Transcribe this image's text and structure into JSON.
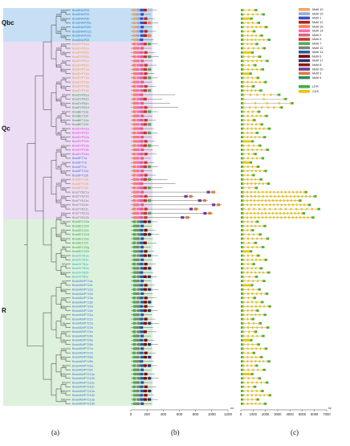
{
  "groups": [
    {
      "id": "qbc",
      "label": "Qbc",
      "color": "#bcd9f2"
    },
    {
      "id": "qc",
      "label": "Qc",
      "color": "#e9d7f2"
    },
    {
      "id": "r",
      "label": "R",
      "color": "#d7efd7"
    }
  ],
  "panel_labels": {
    "a": "(a)",
    "b": "(b)",
    "c": "(c)"
  },
  "axis_b": {
    "ticks": [
      "0",
      "200",
      "400",
      "600",
      "800",
      "1000",
      "1200"
    ],
    "unit": "aa"
  },
  "axis_c": {
    "ticks": [
      "0",
      "1000",
      "2000",
      "3000",
      "4000",
      "5000",
      "6000",
      "7000"
    ],
    "unit": "bp"
  },
  "motif_legend": [
    {
      "label": "Motif 10",
      "color": "#f4a460"
    },
    {
      "label": "Motif 15",
      "color": "#9aa8d8"
    },
    {
      "label": "Motif 1",
      "color": "#3b4cc0"
    },
    {
      "label": "Motif 12",
      "color": "#b22222"
    },
    {
      "label": "Motif 16",
      "color": "#ff7f50"
    },
    {
      "label": "Motif 14",
      "color": "#ff69b4"
    },
    {
      "label": "Motif 2",
      "color": "#e0607e"
    },
    {
      "label": "Motif 5",
      "color": "#cc3333"
    },
    {
      "label": "Motif 7",
      "color": "#4daf4a"
    },
    {
      "label": "Motif 11",
      "color": "#808080"
    },
    {
      "label": "Motif 13",
      "color": "#1f5fa0"
    },
    {
      "label": "Motif 6",
      "color": "#800000"
    },
    {
      "label": "Motif 17",
      "color": "#2f2f6f"
    },
    {
      "label": "Motif 8",
      "color": "#8b1a1a"
    },
    {
      "label": "Motif 20",
      "color": "#6a3d9a"
    },
    {
      "label": "Motif 3",
      "color": "#e07b39"
    },
    {
      "label": "Motif 4",
      "color": "#2e8b57"
    }
  ],
  "structure_legend": [
    {
      "label": "UTR",
      "color": "#3cb043"
    },
    {
      "label": "CDS",
      "color": "#f2c200"
    }
  ],
  "genes": [
    {
      "name": "BnaSNAP33",
      "g": "qbc",
      "c": "#1a7fc0"
    },
    {
      "name": "BnaSNAP29",
      "g": "qbc",
      "c": "#1a7fc0"
    },
    {
      "name": "BnaSNAP30",
      "g": "qbc",
      "c": "#1a7fc0"
    },
    {
      "name": "BnaSNAP25a",
      "g": "qbc",
      "c": "#1a7fc0"
    },
    {
      "name": "BnaSNAP25b",
      "g": "qbc",
      "c": "#1a7fc0"
    },
    {
      "name": "BnaSNAP31a",
      "g": "qbc",
      "c": "#1a7fc0"
    },
    {
      "name": "BnaSNAP31b",
      "g": "qbc",
      "c": "#1a7fc0"
    },
    {
      "name": "BnaSNAP32",
      "g": "qbc",
      "c": "#1a7fc0"
    },
    {
      "name": "BnaSYP51a",
      "g": "qc",
      "c": "#e0a040"
    },
    {
      "name": "BnaSYP51b",
      "g": "qc",
      "c": "#e0a040"
    },
    {
      "name": "BnaSYP52a",
      "g": "qc",
      "c": "#e0a040"
    },
    {
      "name": "BnaSYP52b",
      "g": "qc",
      "c": "#e0a040"
    },
    {
      "name": "BnaSYP61a",
      "g": "qc",
      "c": "#e0a040"
    },
    {
      "name": "BnaSYP61b",
      "g": "qc",
      "c": "#e0a040"
    },
    {
      "name": "BnaSYP71a",
      "g": "qc",
      "c": "#e0a040"
    },
    {
      "name": "BnaSYP71b",
      "g": "qc",
      "c": "#e0a040"
    },
    {
      "name": "BnaSYP72a",
      "g": "qc",
      "c": "#e0a040"
    },
    {
      "name": "BnaSYP72b",
      "g": "qc",
      "c": "#e0a040"
    },
    {
      "name": "BnaSYP73a",
      "g": "qc",
      "c": "#e0a040"
    },
    {
      "name": "BnaSYP73b",
      "g": "qc",
      "c": "#e0a040"
    },
    {
      "name": "BnaSYP81a",
      "g": "qc",
      "c": "#2e9e3e"
    },
    {
      "name": "BnaSYP81b",
      "g": "qc",
      "c": "#2e9e3e"
    },
    {
      "name": "BnaSYP81c",
      "g": "qc",
      "c": "#2e9e3e"
    },
    {
      "name": "BnaSYP81d",
      "g": "qc",
      "c": "#2e9e3e"
    },
    {
      "name": "BnaBET11a",
      "g": "qc",
      "c": "#2e9e3e"
    },
    {
      "name": "BnaBET11b",
      "g": "qc",
      "c": "#2e9e3e"
    },
    {
      "name": "BnaBET12a",
      "g": "qc",
      "c": "#2e9e3e"
    },
    {
      "name": "BnaBET12b",
      "g": "qc",
      "c": "#2e9e3e"
    },
    {
      "name": "BnaSYP21a",
      "g": "qc",
      "c": "#d63ad6"
    },
    {
      "name": "BnaSYP21b",
      "g": "qc",
      "c": "#d63ad6"
    },
    {
      "name": "BnaSYP22a",
      "g": "qc",
      "c": "#d63ad6"
    },
    {
      "name": "BnaSYP22b",
      "g": "qc",
      "c": "#d63ad6"
    },
    {
      "name": "BnaSYP23a",
      "g": "qc",
      "c": "#d63ad6"
    },
    {
      "name": "BnaSYP23b",
      "g": "qc",
      "c": "#d63ad6"
    },
    {
      "name": "BnaSYP24a",
      "g": "qc",
      "c": "#d63ad6"
    },
    {
      "name": "BnaSFT1a",
      "g": "qc",
      "c": "#3a6fd6"
    },
    {
      "name": "BnaSFT1b",
      "g": "qc",
      "c": "#3a6fd6"
    },
    {
      "name": "BnaSFT1c",
      "g": "qc",
      "c": "#3a6fd6"
    },
    {
      "name": "BnaSFT12a",
      "g": "qc",
      "c": "#3a6fd6"
    },
    {
      "name": "BnaSFT12b",
      "g": "qc",
      "c": "#3a6fd6"
    },
    {
      "name": "BnaSFT13a",
      "g": "qc",
      "c": "#e0a040"
    },
    {
      "name": "BnaSFT13b",
      "g": "qc",
      "c": "#e0a040"
    },
    {
      "name": "BnaSFT13c",
      "g": "qc",
      "c": "#e0a040"
    },
    {
      "name": "BnaTYN21a",
      "g": "qc",
      "c": "#7a7a7a"
    },
    {
      "name": "BnaTYN21b",
      "g": "qc",
      "c": "#7a7a7a"
    },
    {
      "name": "BnaTYN11a",
      "g": "qc",
      "c": "#7a7a7a"
    },
    {
      "name": "BnaTYN11b",
      "g": "qc",
      "c": "#7a7a7a"
    },
    {
      "name": "BnaTYN11c",
      "g": "qc",
      "c": "#7a7a7a"
    },
    {
      "name": "BnaTYN12a",
      "g": "qc",
      "c": "#7a7a7a"
    },
    {
      "name": "BnaTYN12b",
      "g": "qc",
      "c": "#7a7a7a"
    },
    {
      "name": "BnaSEC22a",
      "g": "r",
      "c": "#2e9e3e"
    },
    {
      "name": "BnaSEC22b",
      "g": "r",
      "c": "#2e9e3e"
    },
    {
      "name": "BnaSEC22c",
      "g": "r",
      "c": "#2e9e3e"
    },
    {
      "name": "BnaSEC22d",
      "g": "r",
      "c": "#2e9e3e"
    },
    {
      "name": "BnaSEC22e",
      "g": "r",
      "c": "#2e9e3e"
    },
    {
      "name": "BnaSEC22f",
      "g": "r",
      "c": "#2e9e3e"
    },
    {
      "name": "BnaSEC22g",
      "g": "r",
      "c": "#2e9e3e"
    },
    {
      "name": "BnaSEC22h",
      "g": "r",
      "c": "#2e9e3e"
    },
    {
      "name": "BnaYKT61a",
      "g": "r",
      "c": "#19b0b0"
    },
    {
      "name": "BnaYKT61b",
      "g": "r",
      "c": "#19b0b0"
    },
    {
      "name": "BnaYKT61c",
      "g": "r",
      "c": "#19b0b0"
    },
    {
      "name": "BnaYKT62a",
      "g": "r",
      "c": "#19b0b0"
    },
    {
      "name": "BnaYKT62b",
      "g": "r",
      "c": "#19b0b0"
    },
    {
      "name": "BnaYKT62c",
      "g": "r",
      "c": "#19b0b0"
    },
    {
      "name": "BnaVAMP711a",
      "g": "r",
      "c": "#3a6fd6"
    },
    {
      "name": "BnaVAMP711b",
      "g": "r",
      "c": "#3a6fd6"
    },
    {
      "name": "BnaVAMP712a",
      "g": "r",
      "c": "#3a6fd6"
    },
    {
      "name": "BnaVAMP712b",
      "g": "r",
      "c": "#3a6fd6"
    },
    {
      "name": "BnaVAMP713a",
      "g": "r",
      "c": "#3a6fd6"
    },
    {
      "name": "BnaVAMP713b",
      "g": "r",
      "c": "#3a6fd6"
    },
    {
      "name": "BnaVAMP714a",
      "g": "r",
      "c": "#3a6fd6"
    },
    {
      "name": "BnaVAMP714b",
      "g": "r",
      "c": "#3a6fd6"
    },
    {
      "name": "BnaVAMP721a",
      "g": "r",
      "c": "#3a6fd6"
    },
    {
      "name": "BnaVAMP721b",
      "g": "r",
      "c": "#3a6fd6"
    },
    {
      "name": "BnaVAMP722a",
      "g": "r",
      "c": "#3a6fd6"
    },
    {
      "name": "BnaVAMP722b",
      "g": "r",
      "c": "#3a6fd6"
    },
    {
      "name": "BnaVAMP724a",
      "g": "r",
      "c": "#3a6fd6"
    },
    {
      "name": "BnaVAMP724b",
      "g": "r",
      "c": "#3a6fd6"
    },
    {
      "name": "BnaVAMP726a",
      "g": "r",
      "c": "#3a6fd6"
    },
    {
      "name": "BnaVAMP726b",
      "g": "r",
      "c": "#3a6fd6"
    },
    {
      "name": "BnaVAMP727a",
      "g": "r",
      "c": "#3a6fd6"
    },
    {
      "name": "BnaVAMP727b",
      "g": "r",
      "c": "#3a6fd6"
    },
    {
      "name": "BnaVAMP728a",
      "g": "r",
      "c": "#3a6fd6"
    },
    {
      "name": "BnaVAMP728b",
      "g": "r",
      "c": "#3a6fd6"
    },
    {
      "name": "BnaVAMP729a",
      "g": "r",
      "c": "#3a6fd6"
    },
    {
      "name": "BnaVAMP729b",
      "g": "r",
      "c": "#3a6fd6"
    },
    {
      "name": "BnaVAMP7210a",
      "g": "r",
      "c": "#3a6fd6"
    },
    {
      "name": "BnaVAMP7210b",
      "g": "r",
      "c": "#3a6fd6"
    },
    {
      "name": "BnaVAMP7211a",
      "g": "r",
      "c": "#3a6fd6"
    },
    {
      "name": "BnaVAMP7211b",
      "g": "r",
      "c": "#3a6fd6"
    },
    {
      "name": "BnaVAMP7212a",
      "g": "r",
      "c": "#3a6fd6"
    },
    {
      "name": "BnaVAMP7212b",
      "g": "r",
      "c": "#3a6fd6"
    },
    {
      "name": "BnaVAMP7213a",
      "g": "r",
      "c": "#3a6fd6"
    },
    {
      "name": "BnaVAMP7213b",
      "g": "r",
      "c": "#3a6fd6"
    }
  ],
  "bootstrap_values": [
    "100",
    "99",
    "100",
    "94",
    "100",
    "95",
    "81",
    "100",
    "99",
    "100",
    "87",
    "100",
    "92",
    "100",
    "95",
    "100",
    "100",
    "100",
    "91",
    "100",
    "100",
    "85",
    "100",
    "99",
    "100",
    "78",
    "100",
    "100",
    "88",
    "100",
    "97",
    "100",
    "92",
    "100",
    "100",
    "100",
    "100",
    "75",
    "100",
    "99",
    "100",
    "100",
    "96",
    "100",
    "87",
    "100",
    "100",
    "100",
    "94",
    "100",
    "100",
    "100",
    "100",
    "93",
    "88",
    "100",
    "99",
    "100",
    "100",
    "100",
    "100"
  ]
}
